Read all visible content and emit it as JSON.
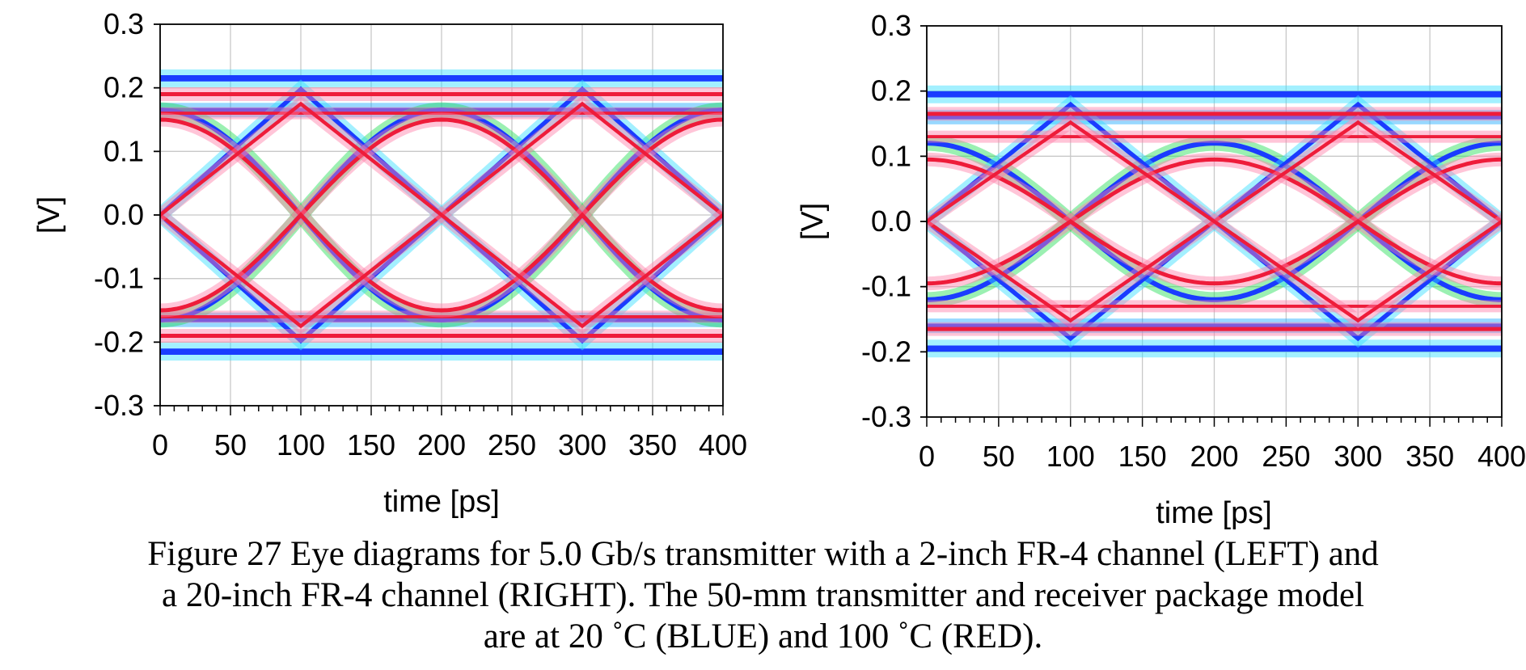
{
  "chart_data": [
    {
      "type": "line",
      "panel": "left",
      "xlabel": "time [ps]",
      "ylabel": "[V]",
      "xlim": [
        0,
        400
      ],
      "ylim": [
        -0.3,
        0.3
      ],
      "xticks": [
        "0",
        "50",
        "100",
        "150",
        "200",
        "250",
        "300",
        "350",
        "400"
      ],
      "yticks": [
        "0.3",
        "0.2",
        "0.1",
        "0.0",
        "-0.1",
        "-0.2",
        "-0.3"
      ],
      "grid": true,
      "crossings_ps": [
        100,
        300
      ],
      "series": [
        {
          "color": "#1a3cff",
          "rail_outer": 0.215,
          "rail_inner": 0.165,
          "inner_start": 0.2,
          "eye_open": 0.165
        },
        {
          "color": "#ee1c3a",
          "rail_outer": 0.19,
          "rail_inner": 0.16,
          "inner_start": 0.14,
          "eye_open": 0.15
        }
      ]
    },
    {
      "type": "line",
      "panel": "right",
      "xlabel": "time [ps]",
      "ylabel": "[V]",
      "xlim": [
        0,
        400
      ],
      "ylim": [
        -0.3,
        0.3
      ],
      "xticks": [
        "0",
        "50",
        "100",
        "150",
        "200",
        "250",
        "300",
        "350",
        "400"
      ],
      "yticks": [
        "0.3",
        "0.2",
        "0.1",
        "0.0",
        "-0.1",
        "-0.2",
        "-0.3"
      ],
      "grid": true,
      "crossings_ps": [
        100,
        300
      ],
      "series": [
        {
          "color": "#1a3cff",
          "rail_outer": 0.195,
          "rail_inner": 0.16,
          "inner_start": 0.15,
          "eye_open": 0.12
        },
        {
          "color": "#ee1c3a",
          "rail_outer": 0.165,
          "rail_inner": 0.13,
          "inner_start": 0.1,
          "eye_open": 0.095
        }
      ]
    }
  ],
  "caption": {
    "line1": "Figure 27 Eye diagrams for 5.0 Gb/s transmitter with a 2-inch FR-4 channel (LEFT) and",
    "line2": "a 20-inch FR-4 channel (RIGHT). The 50-mm transmitter and receiver package model",
    "line3": "are at 20 ˚C (BLUE) and 100 ˚C (RED)."
  }
}
